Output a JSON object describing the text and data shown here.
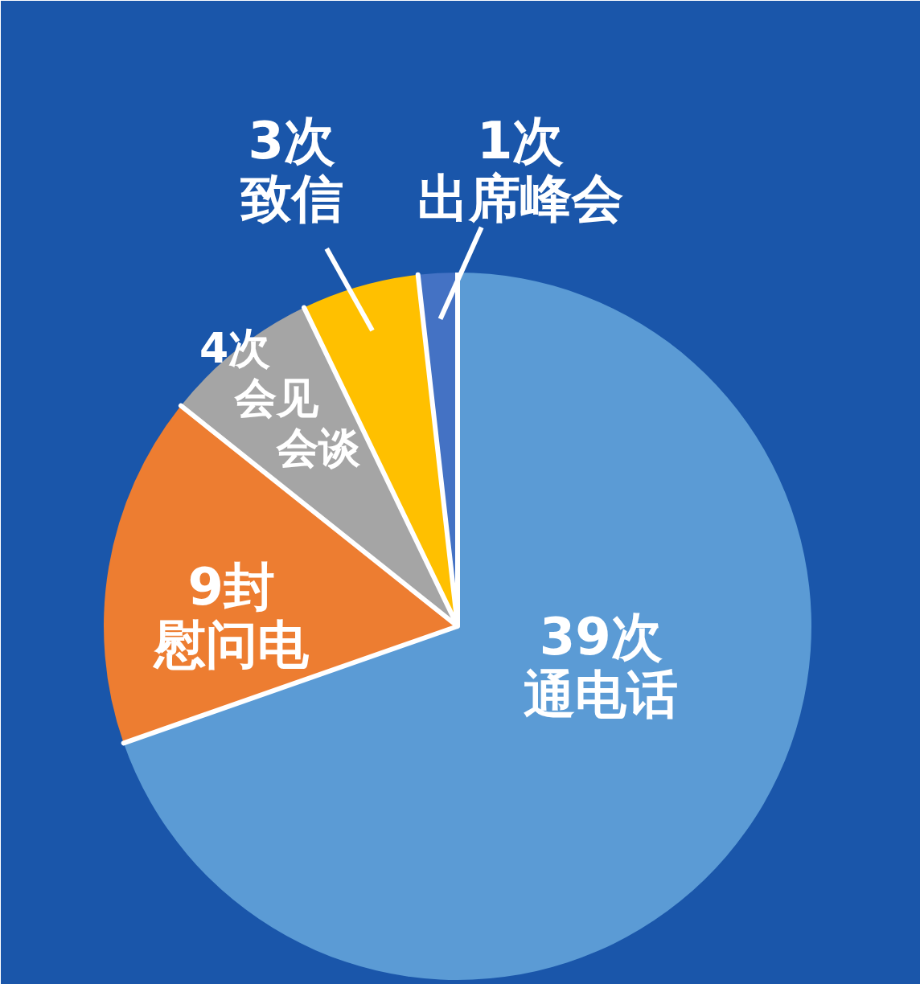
{
  "chart_data": {
    "type": "pie",
    "categories": [
      "通电话",
      "慰问电",
      "会见会谈",
      "致信",
      "出席峰会"
    ],
    "values": [
      39,
      9,
      4,
      3,
      1
    ],
    "colors": [
      "#5b9bd5",
      "#ed7d31",
      "#a5a5a5",
      "#ffc000",
      "#4472c4"
    ],
    "value_labels": [
      "39次",
      "9封",
      "4次",
      "3次",
      "1次"
    ]
  }
}
